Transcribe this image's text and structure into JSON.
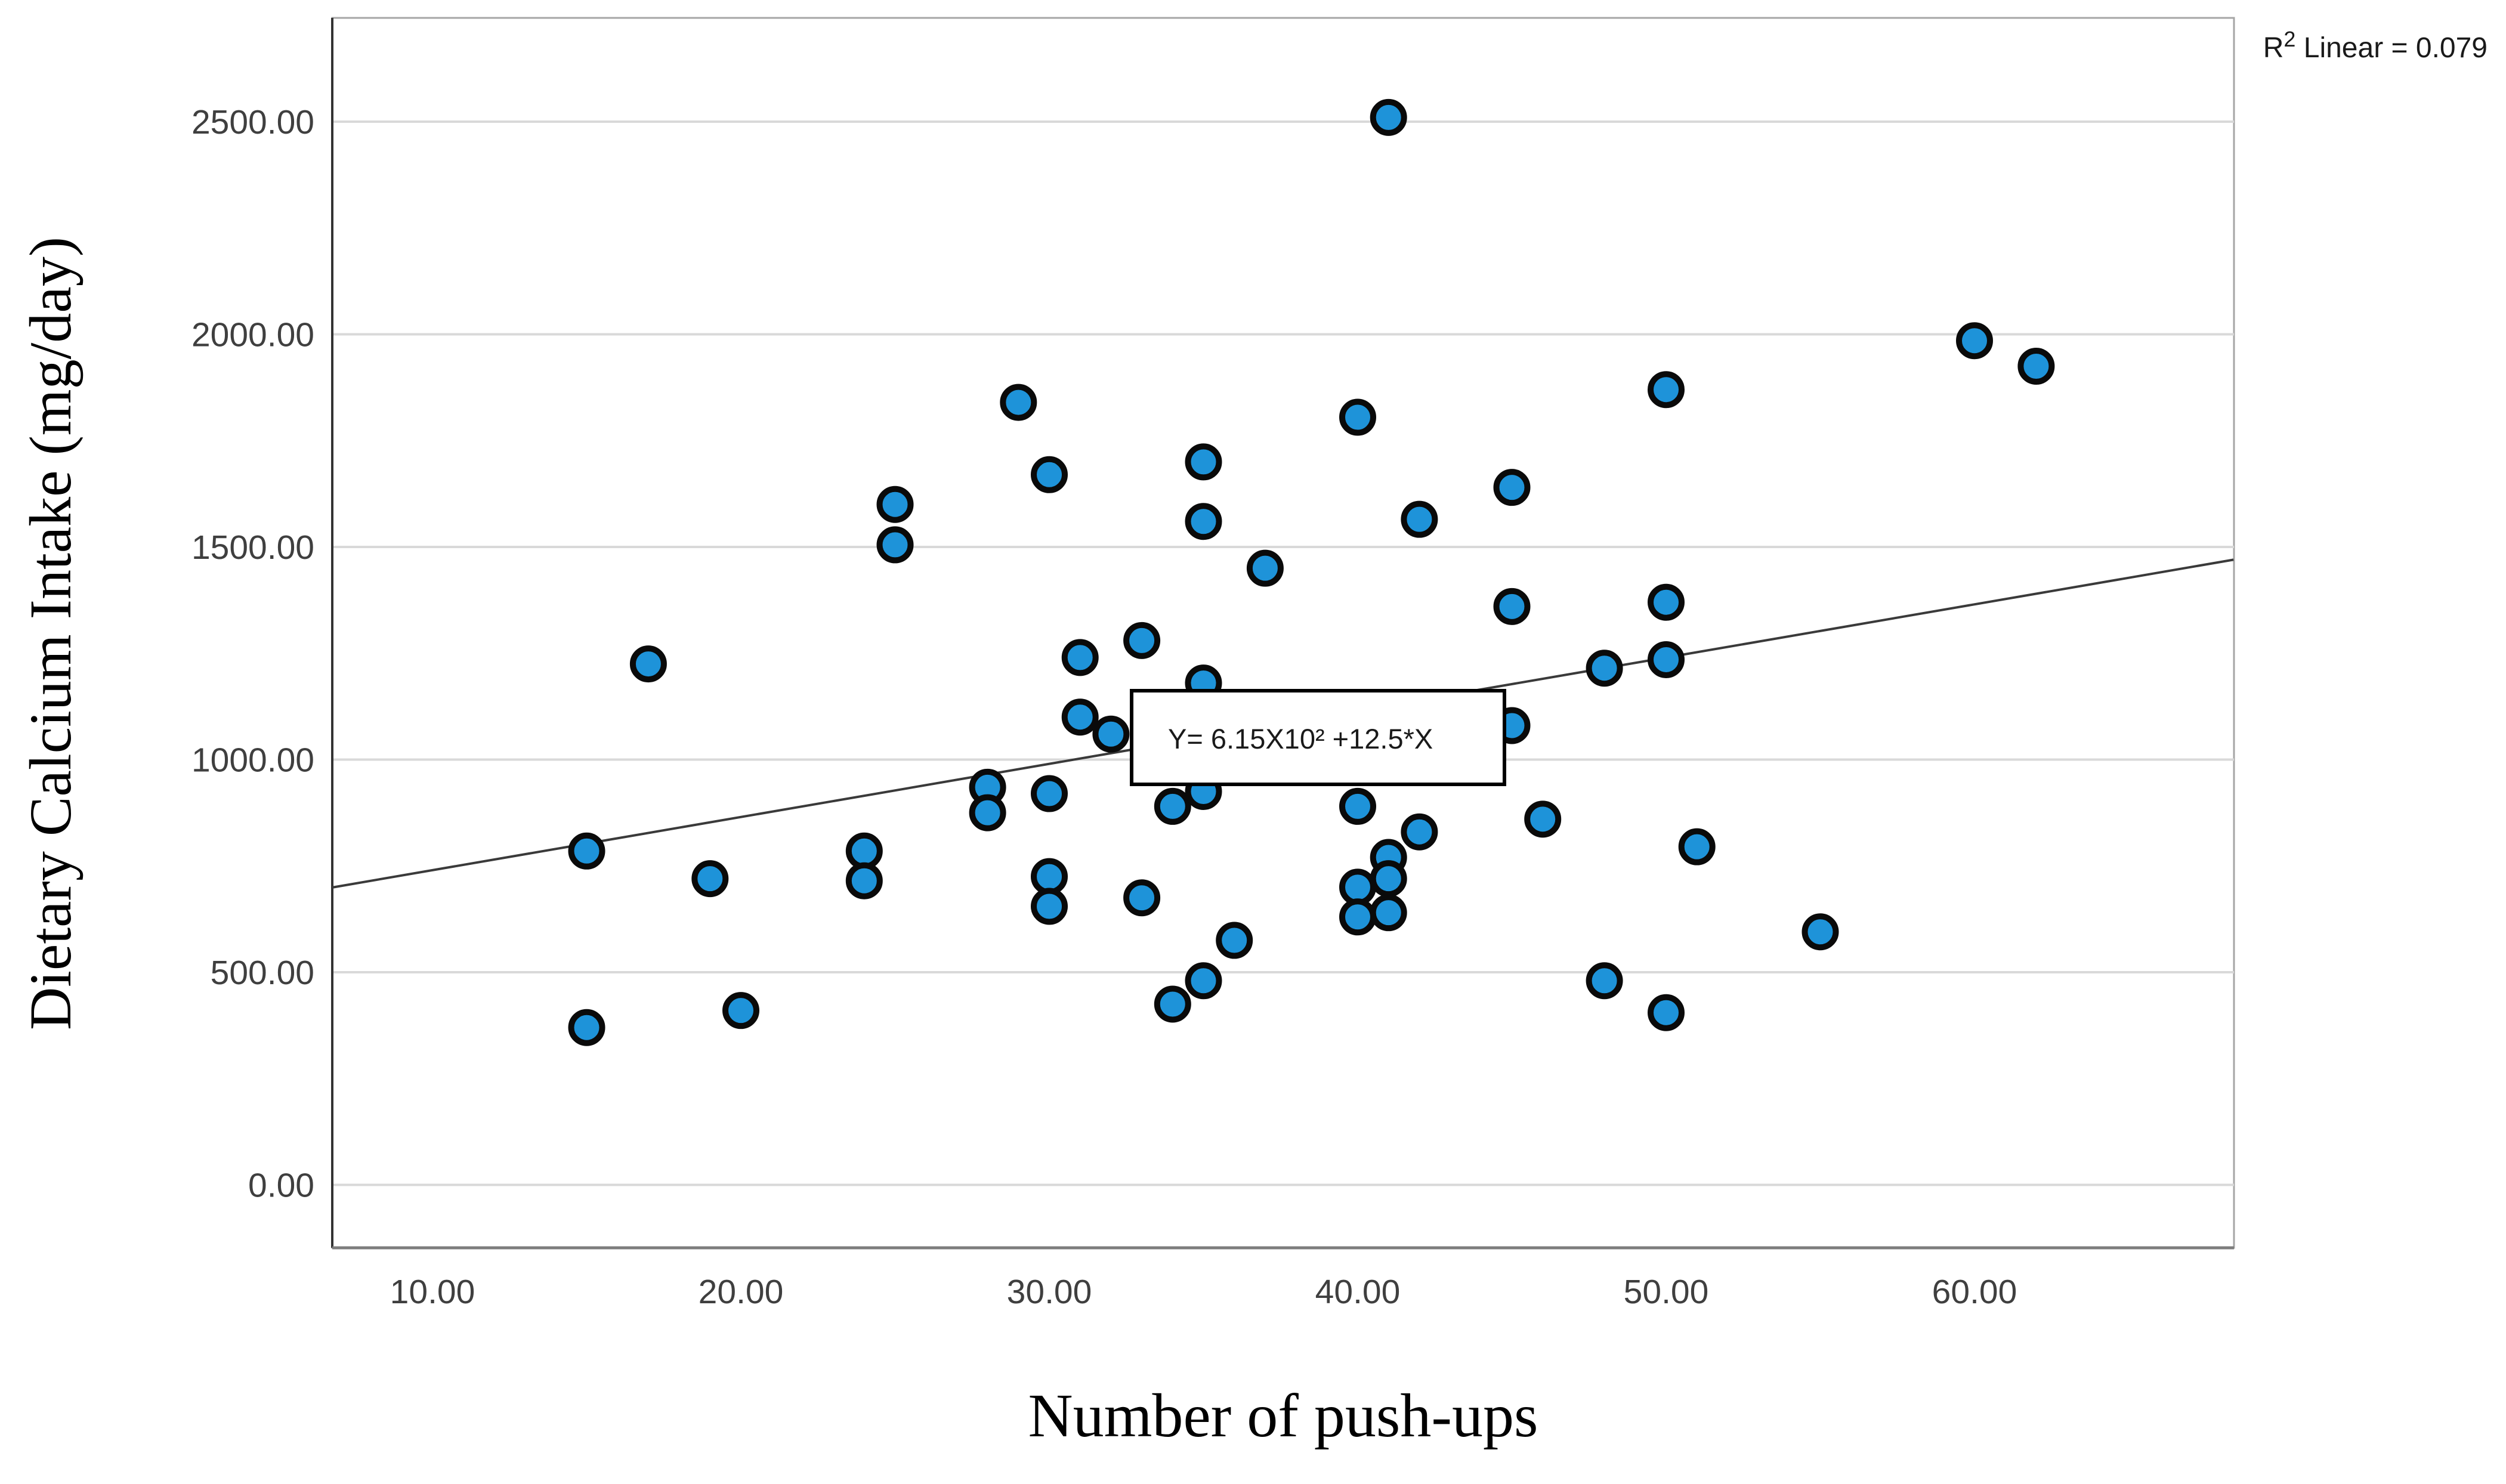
{
  "annotation": {
    "r_base": "R",
    "r_sup": "2",
    "rest": " Linear = 0.079"
  },
  "equation": {
    "label": "Y= 6.15X10² +12.5*X"
  },
  "chart_data": {
    "type": "scatter",
    "title": "",
    "xlabel": "Number of push-ups",
    "ylabel": "Dietary Calcium Intake (mg/day)",
    "x_ticks": [
      10,
      20,
      30,
      40,
      50,
      60
    ],
    "x_tick_labels": [
      "10.00",
      "20.00",
      "30.00",
      "40.00",
      "50.00",
      "60.00"
    ],
    "y_ticks": [
      0,
      500,
      1000,
      1500,
      2000,
      2500
    ],
    "y_tick_labels": [
      "0.00",
      "500.00",
      "1000.00",
      "1500.00",
      "2000.00",
      "2500.00"
    ],
    "xlim": [
      6.75,
      68.4
    ],
    "ylim": [
      -150,
      2745
    ],
    "grid": "horizontal-only",
    "legend": "none",
    "points": [
      [
        15,
        370
      ],
      [
        15,
        785
      ],
      [
        17,
        1225
      ],
      [
        19,
        720
      ],
      [
        20,
        410
      ],
      [
        24,
        785
      ],
      [
        24,
        715
      ],
      [
        25,
        1600
      ],
      [
        25,
        1505
      ],
      [
        28,
        935
      ],
      [
        28,
        875
      ],
      [
        29,
        1840
      ],
      [
        30,
        1670
      ],
      [
        30,
        920
      ],
      [
        30,
        725
      ],
      [
        30,
        655
      ],
      [
        31,
        1240
      ],
      [
        31,
        1100
      ],
      [
        32,
        1060
      ],
      [
        33,
        1280
      ],
      [
        33,
        675
      ],
      [
        34,
        890
      ],
      [
        34,
        425
      ],
      [
        35,
        925
      ],
      [
        35,
        1180
      ],
      [
        35,
        1700
      ],
      [
        35,
        1560
      ],
      [
        36,
        575
      ],
      [
        35,
        480
      ],
      [
        37,
        1450
      ],
      [
        40,
        1805
      ],
      [
        40,
        890
      ],
      [
        40,
        700
      ],
      [
        40,
        630
      ],
      [
        41,
        2510
      ],
      [
        41,
        770
      ],
      [
        41,
        720
      ],
      [
        41,
        640
      ],
      [
        42,
        830
      ],
      [
        42,
        1565
      ],
      [
        45,
        1640
      ],
      [
        45,
        1360
      ],
      [
        45,
        1080
      ],
      [
        46,
        860
      ],
      [
        48,
        1215
      ],
      [
        48,
        480
      ],
      [
        50,
        1870
      ],
      [
        50,
        1370
      ],
      [
        50,
        1235
      ],
      [
        50,
        405
      ],
      [
        51,
        795
      ],
      [
        55,
        595
      ],
      [
        60,
        1985
      ],
      [
        62,
        1925
      ]
    ],
    "regression": {
      "slope": 12.5,
      "intercept": 615,
      "r_squared": 0.079
    },
    "point_style": {
      "fill": "#1E93D9",
      "stroke": "#0a0a0a"
    },
    "line_color": "#3a3a3a",
    "grid_color": "#d9d9d9"
  }
}
